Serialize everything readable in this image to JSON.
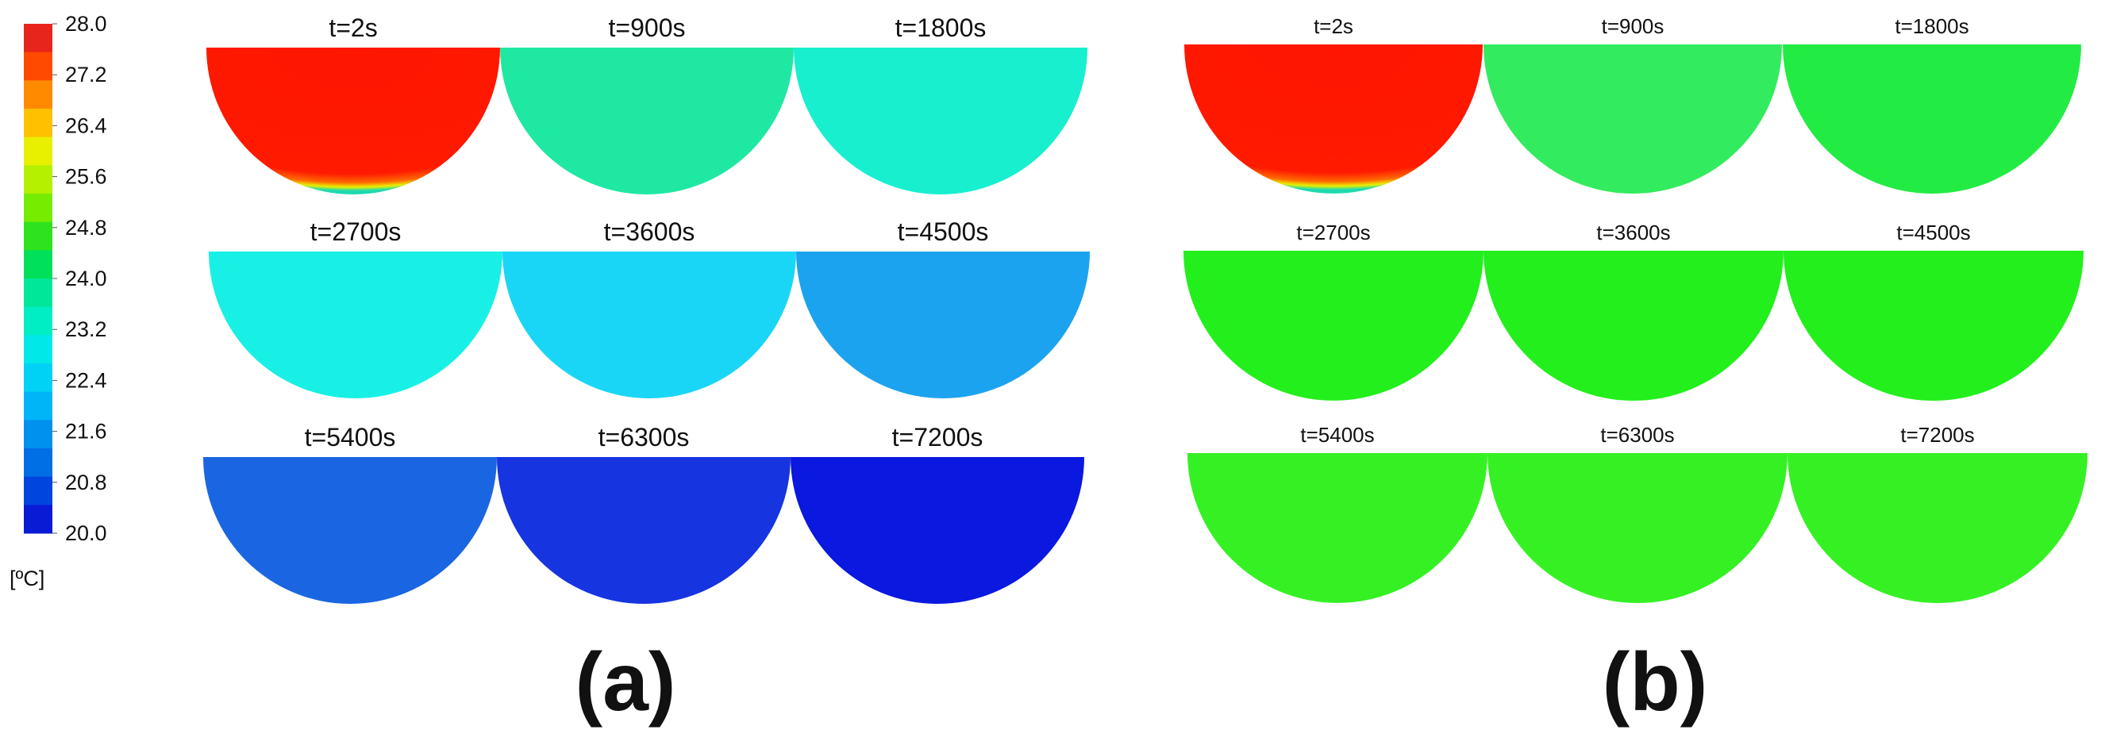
{
  "colorbar": {
    "unit": "[ºC]",
    "ticks": [
      "28.0",
      "27.2",
      "26.4",
      "25.6",
      "24.8",
      "24.0",
      "23.2",
      "22.4",
      "21.6",
      "20.8",
      "20.0"
    ],
    "colors": [
      "#e8251c",
      "#ff4a00",
      "#ff8a00",
      "#ffc000",
      "#e8f000",
      "#b4f000",
      "#76ec00",
      "#2ee31d",
      "#00e05a",
      "#00e79a",
      "#00eec4",
      "#00e8e8",
      "#00d2f6",
      "#00b4f8",
      "#0090ee",
      "#006ee4",
      "#0046de",
      "#0a1bd6"
    ]
  },
  "panel_a": {
    "label": "(a)",
    "plots": [
      {
        "time": "t=2s",
        "fill": "#ff1a00",
        "hot": true
      },
      {
        "time": "t=900s",
        "fill": "#1fe8a2",
        "hot": false
      },
      {
        "time": "t=1800s",
        "fill": "#17efcf",
        "hot": false
      },
      {
        "time": "t=2700s",
        "fill": "#18f0e6",
        "hot": false
      },
      {
        "time": "t=3600s",
        "fill": "#1ad6f6",
        "hot": false
      },
      {
        "time": "t=4500s",
        "fill": "#1ca3ef",
        "hot": false
      },
      {
        "time": "t=5400s",
        "fill": "#1a66e2",
        "hot": false
      },
      {
        "time": "t=6300s",
        "fill": "#1634e0",
        "hot": false
      },
      {
        "time": "t=7200s",
        "fill": "#0a18e0",
        "hot": false
      }
    ]
  },
  "panel_b": {
    "label": "(b)",
    "plots": [
      {
        "time": "t=2s",
        "fill": "#ff1a00",
        "hot": true
      },
      {
        "time": "t=900s",
        "fill": "#33eb5e",
        "hot": false
      },
      {
        "time": "t=1800s",
        "fill": "#22ec44",
        "hot": false
      },
      {
        "time": "t=2700s",
        "fill": "#22ef1c",
        "hot": false
      },
      {
        "time": "t=3600s",
        "fill": "#22ef1c",
        "hot": false
      },
      {
        "time": "t=4500s",
        "fill": "#22ef1c",
        "hot": false
      },
      {
        "time": "t=5400s",
        "fill": "#35f123",
        "hot": false
      },
      {
        "time": "t=6300s",
        "fill": "#35f123",
        "hot": false
      },
      {
        "time": "t=7200s",
        "fill": "#35f123",
        "hot": false
      }
    ]
  }
}
